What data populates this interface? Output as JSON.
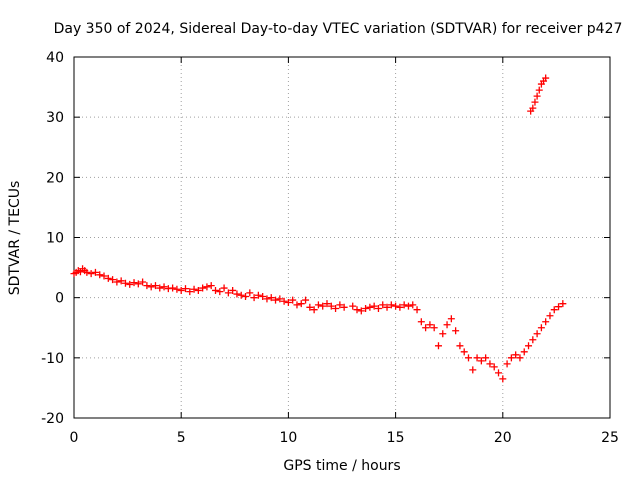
{
  "chart_data": {
    "type": "scatter",
    "title": "Day 350 of 2024, Sidereal Day-to-day VTEC variation (SDTVAR) for receiver p427",
    "xlabel": "GPS time / hours",
    "ylabel": "SDTVAR / TECUs",
    "xlim": [
      0,
      25
    ],
    "ylim": [
      -20,
      40
    ],
    "xticks": [
      0,
      5,
      10,
      15,
      20,
      25
    ],
    "yticks": [
      -20,
      -10,
      0,
      10,
      20,
      30,
      40
    ],
    "xtick_labels": [
      "0",
      "5",
      "10",
      "15",
      "20",
      "25"
    ],
    "ytick_labels": [
      "-20",
      "-10",
      "0",
      "10",
      "20",
      "30",
      "40"
    ],
    "grid": true,
    "marker": "plus",
    "series": [
      {
        "name": "SDTVAR",
        "color": "#ff0000",
        "x": [
          0.0,
          0.1,
          0.2,
          0.3,
          0.4,
          0.5,
          0.6,
          0.8,
          1.0,
          1.2,
          1.4,
          1.6,
          1.8,
          2.0,
          2.2,
          2.4,
          2.6,
          2.8,
          3.0,
          3.2,
          3.4,
          3.6,
          3.8,
          4.0,
          4.2,
          4.4,
          4.6,
          4.8,
          5.0,
          5.2,
          5.4,
          5.6,
          5.8,
          6.0,
          6.2,
          6.4,
          6.6,
          6.8,
          7.0,
          7.2,
          7.4,
          7.6,
          7.8,
          8.0,
          8.2,
          8.4,
          8.6,
          8.8,
          9.0,
          9.2,
          9.4,
          9.6,
          9.8,
          10.0,
          10.2,
          10.4,
          10.6,
          10.8,
          11.0,
          11.2,
          11.4,
          11.6,
          11.8,
          12.0,
          12.2,
          12.4,
          12.6,
          13.0,
          13.2,
          13.4,
          13.6,
          13.8,
          14.0,
          14.2,
          14.4,
          14.6,
          14.8,
          15.0,
          15.2,
          15.4,
          15.6,
          15.8,
          16.0,
          16.2,
          16.4,
          16.6,
          16.8,
          17.0,
          17.2,
          17.4,
          17.6,
          17.8,
          18.0,
          18.2,
          18.4,
          18.6,
          18.8,
          19.0,
          19.2,
          19.4,
          19.6,
          19.8,
          20.0,
          20.2,
          20.4,
          20.6,
          20.8,
          21.0,
          21.2,
          21.4,
          21.6,
          21.8,
          22.0,
          22.2,
          22.4,
          22.6,
          22.8,
          21.3,
          21.4,
          21.5,
          21.6,
          21.7,
          21.8,
          21.9,
          22.0
        ],
        "y": [
          4.0,
          4.2,
          4.5,
          4.3,
          4.8,
          4.5,
          4.2,
          4.0,
          4.2,
          3.8,
          3.6,
          3.2,
          3.0,
          2.6,
          2.8,
          2.4,
          2.2,
          2.5,
          2.3,
          2.6,
          2.0,
          1.8,
          2.0,
          1.6,
          1.8,
          1.5,
          1.6,
          1.4,
          1.2,
          1.5,
          1.0,
          1.4,
          1.2,
          1.6,
          1.8,
          2.0,
          1.2,
          1.0,
          1.6,
          0.8,
          1.2,
          0.6,
          0.4,
          0.2,
          0.8,
          0.0,
          0.4,
          0.2,
          -0.2,
          0.0,
          -0.4,
          -0.2,
          -0.6,
          -0.8,
          -0.4,
          -1.2,
          -1.0,
          -0.4,
          -1.6,
          -2.0,
          -1.2,
          -1.4,
          -1.0,
          -1.4,
          -1.8,
          -1.2,
          -1.6,
          -1.4,
          -2.0,
          -2.2,
          -1.8,
          -1.6,
          -1.4,
          -1.8,
          -1.2,
          -1.6,
          -1.2,
          -1.4,
          -1.6,
          -1.2,
          -1.4,
          -1.2,
          -2.0,
          -4.0,
          -5.0,
          -4.5,
          -5.0,
          -8.0,
          -6.0,
          -4.5,
          -3.5,
          -5.5,
          -8.0,
          -9.0,
          -10.0,
          -12.0,
          -10.0,
          -10.5,
          -10.0,
          -11.0,
          -11.5,
          -12.5,
          -13.5,
          -11.0,
          -10.0,
          -9.5,
          -10.0,
          -9.0,
          -8.0,
          -7.0,
          -6.0,
          -5.0,
          -4.0,
          -3.0,
          -2.0,
          -1.5,
          -1.0,
          31.0,
          31.5,
          32.5,
          33.5,
          34.5,
          35.5,
          36.0,
          36.5
        ]
      }
    ]
  }
}
